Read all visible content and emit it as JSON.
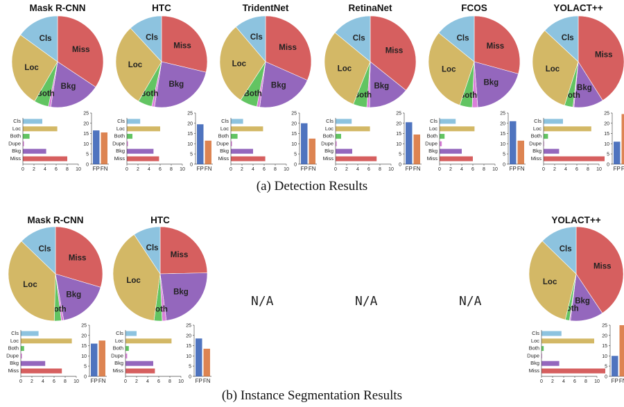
{
  "colors": {
    "Cls": "#8dc3df",
    "Loc": "#d3b866",
    "Both": "#62c462",
    "Dupe": "#d980d9",
    "Bkg": "#9467bd",
    "Miss": "#d65f5f",
    "FP": "#4f74bf",
    "FN": "#dd8452"
  },
  "error_types": [
    "Cls",
    "Loc",
    "Both",
    "Dupe",
    "Bkg",
    "Miss"
  ],
  "fpfn_labels": [
    "FP",
    "FN"
  ],
  "bar_axis_ticks": [
    "0",
    "2",
    "4",
    "6",
    "8",
    "10"
  ],
  "fpfn_axis_ticks": [
    "0",
    "5",
    "10",
    "15",
    "20",
    "25"
  ],
  "na_label": "N/A",
  "captions": {
    "detection": "(a) Detection Results",
    "segmentation": "(b) Instance Segmentation Results"
  },
  "chart_data": [
    {
      "type": "pie",
      "section": "detection",
      "title": "Mask R-CNN",
      "errors": {
        "Cls": 3.5,
        "Loc": 6.2,
        "Both": 1.2,
        "Dupe": 0.2,
        "Bkg": 4.2,
        "Miss": 8.0
      },
      "fp_fn": {
        "FP": 16.5,
        "FN": 15.5
      }
    },
    {
      "type": "pie",
      "section": "detection",
      "title": "HTC",
      "errors": {
        "Cls": 2.4,
        "Loc": 6.0,
        "Both": 1.0,
        "Dupe": 0.2,
        "Bkg": 4.8,
        "Miss": 5.8
      },
      "fp_fn": {
        "FP": 19.5,
        "FN": 11.5
      }
    },
    {
      "type": "pie",
      "section": "detection",
      "title": "TridentNet",
      "errors": {
        "Cls": 2.2,
        "Loc": 5.8,
        "Both": 1.2,
        "Dupe": 0.2,
        "Bkg": 4.0,
        "Miss": 6.2
      },
      "fp_fn": {
        "FP": 20.0,
        "FN": 12.5
      }
    },
    {
      "type": "pie",
      "section": "detection",
      "title": "RetinaNet",
      "errors": {
        "Cls": 2.9,
        "Loc": 6.2,
        "Both": 1.0,
        "Dupe": 0.2,
        "Bkg": 3.0,
        "Miss": 7.4
      },
      "fp_fn": {
        "FP": 20.5,
        "FN": 14.5
      }
    },
    {
      "type": "pie",
      "section": "detection",
      "title": "FCOS",
      "errors": {
        "Cls": 2.9,
        "Loc": 6.3,
        "Both": 0.9,
        "Dupe": 0.4,
        "Bkg": 4.0,
        "Miss": 6.0
      },
      "fp_fn": {
        "FP": 21.0,
        "FN": 11.5
      }
    },
    {
      "type": "pie",
      "section": "detection",
      "title": "YOLACT++",
      "errors": {
        "Cls": 3.5,
        "Loc": 8.6,
        "Both": 0.8,
        "Dupe": 0.1,
        "Bkg": 2.8,
        "Miss": 11.0
      },
      "fp_fn": {
        "FP": 11.0,
        "FN": 24.5
      }
    },
    {
      "type": "pie",
      "section": "segmentation",
      "title": "Mask R-CNN",
      "errors": {
        "Cls": 3.2,
        "Loc": 9.2,
        "Both": 0.6,
        "Dupe": 0.2,
        "Bkg": 4.4,
        "Miss": 7.4
      },
      "fp_fn": {
        "FP": 16.0,
        "FN": 17.5
      }
    },
    {
      "type": "pie",
      "section": "segmentation",
      "title": "HTC",
      "errors": {
        "Cls": 2.0,
        "Loc": 8.3,
        "Both": 0.6,
        "Dupe": 0.3,
        "Bkg": 5.0,
        "Miss": 5.3
      },
      "fp_fn": {
        "FP": 18.5,
        "FN": 13.5
      }
    },
    {
      "type": "pie",
      "section": "segmentation",
      "title": "YOLACT++",
      "errors": {
        "Cls": 3.6,
        "Loc": 9.5,
        "Both": 0.4,
        "Dupe": 0.1,
        "Bkg": 3.2,
        "Miss": 11.5
      },
      "fp_fn": {
        "FP": 10.0,
        "FN": 25.0
      }
    }
  ]
}
